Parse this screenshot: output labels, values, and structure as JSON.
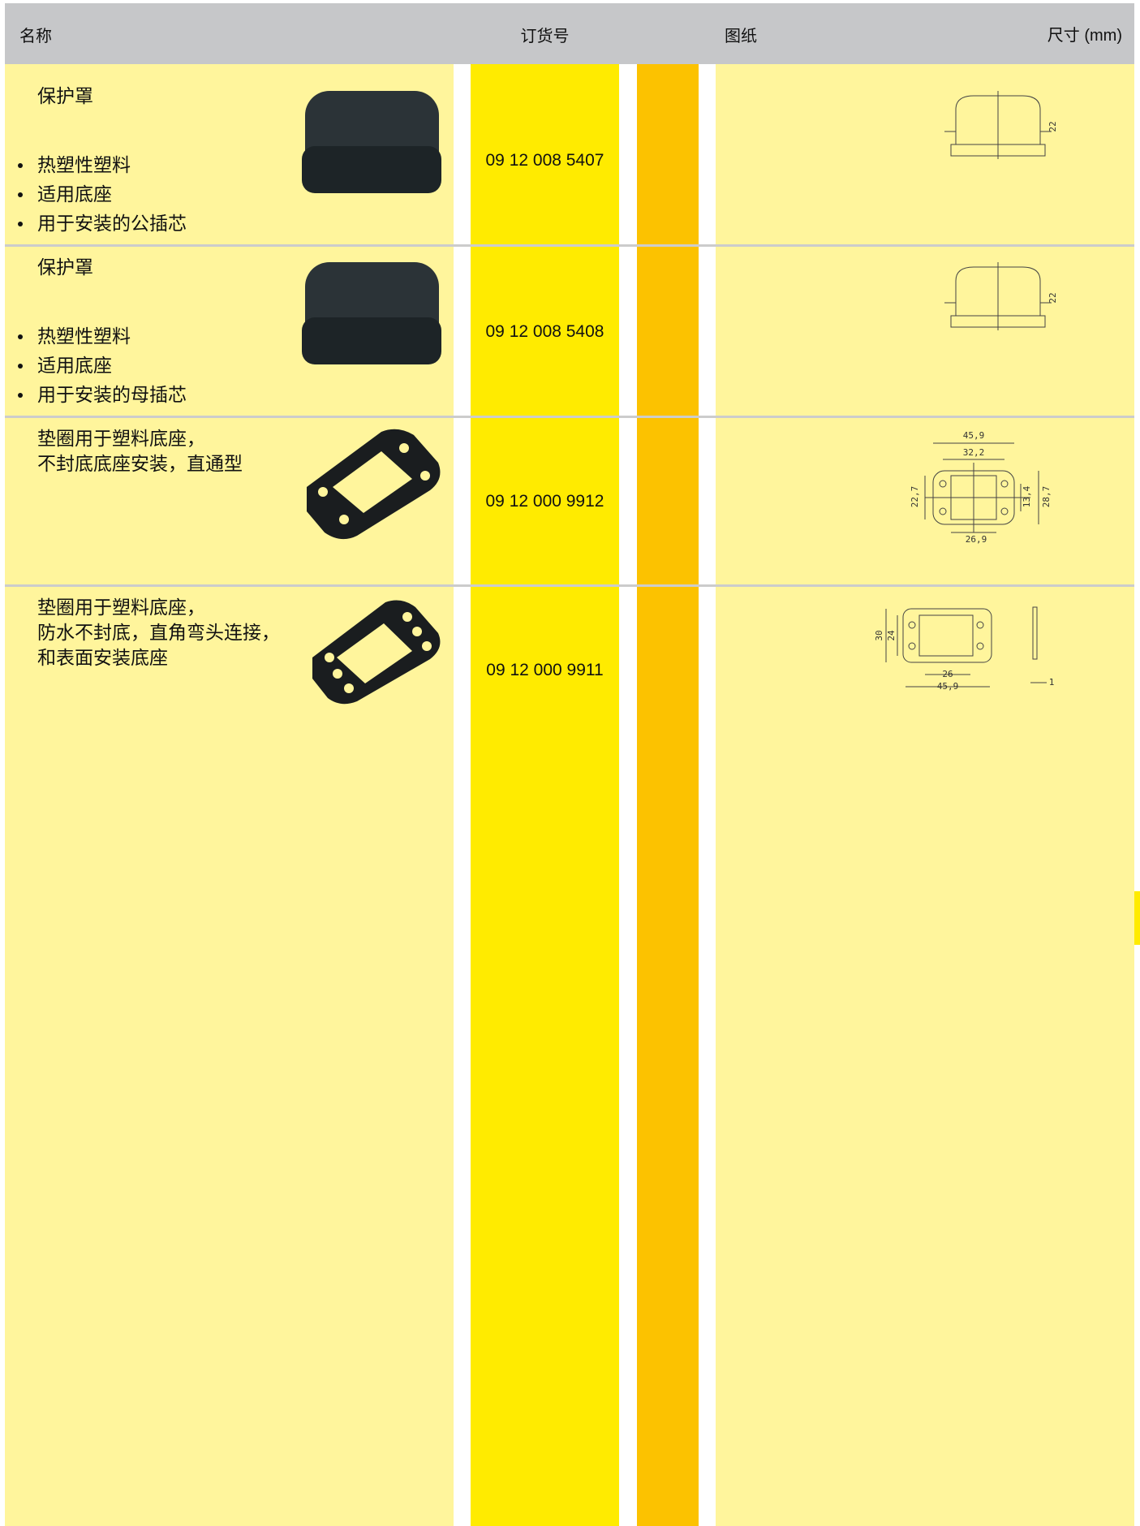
{
  "header": {
    "name": "名称",
    "order_no": "订货号",
    "drawing": "图纸",
    "dimensions": "尺寸 (mm)"
  },
  "rows": [
    {
      "title": [
        "保护罩"
      ],
      "bullets": [
        "热塑性塑料",
        "适用底座",
        "用于安装的公插芯"
      ],
      "order_no": "09 12 008 5407",
      "dims": [
        "22"
      ]
    },
    {
      "title": [
        "保护罩"
      ],
      "bullets": [
        "热塑性塑料",
        "适用底座",
        "用于安装的母插芯"
      ],
      "order_no": "09 12 008 5408",
      "dims": [
        "22"
      ]
    },
    {
      "title": [
        "垫圈用于塑料底座，",
        "不封底底座安装，直通型"
      ],
      "bullets": [],
      "order_no": "09 12 000 9912",
      "dims": [
        "45,9",
        "32,2",
        "22,7",
        "13,4",
        "28,7",
        "26,9"
      ]
    },
    {
      "title": [
        "垫圈用于塑料底座，",
        "防水不封底，直角弯头连接，",
        "和表面安装底座"
      ],
      "bullets": [],
      "order_no": "09 12 000 9911",
      "dims": [
        "30",
        "24",
        "26",
        "45,9",
        "1"
      ]
    }
  ]
}
